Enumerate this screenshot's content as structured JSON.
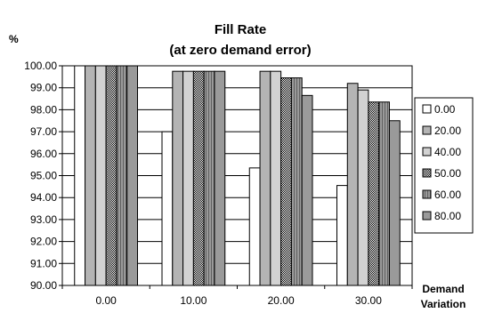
{
  "chart_data": {
    "type": "bar",
    "title": "Fill Rate",
    "subtitle": "(at zero demand error)",
    "ylabel": "%",
    "xlabel": "Demand Variation",
    "xlabel_lines": [
      "Demand",
      "Variation"
    ],
    "ylim": [
      90,
      100
    ],
    "y_ticks": [
      "100.00",
      "99.00",
      "98.00",
      "97.00",
      "96.00",
      "95.00",
      "94.00",
      "93.00",
      "92.00",
      "91.00",
      "90.00"
    ],
    "categories": [
      "0.00",
      "10.00",
      "20.00",
      "30.00"
    ],
    "grid": true,
    "legend_position": "right",
    "series": [
      {
        "name": "0.00",
        "fill": "#ffffff",
        "pattern": "none",
        "values": [
          100.0,
          97.0,
          95.35,
          94.55
        ]
      },
      {
        "name": "20.00",
        "fill": "#b4b4b4",
        "pattern": "none",
        "values": [
          100.0,
          99.75,
          99.75,
          99.2
        ]
      },
      {
        "name": "40.00",
        "fill": "#d2d2d2",
        "pattern": "none",
        "values": [
          100.0,
          99.75,
          99.75,
          98.9
        ]
      },
      {
        "name": "50.00",
        "fill": "#4a4a4a",
        "pattern": "checker",
        "values": [
          100.0,
          99.75,
          99.45,
          98.35
        ]
      },
      {
        "name": "60.00",
        "fill": "#8a8a8a",
        "pattern": "hatch",
        "values": [
          100.0,
          99.75,
          99.45,
          98.35
        ]
      },
      {
        "name": "80.00",
        "fill": "#9a9a9a",
        "pattern": "none",
        "values": [
          100.0,
          99.75,
          98.65,
          97.5
        ]
      }
    ]
  }
}
